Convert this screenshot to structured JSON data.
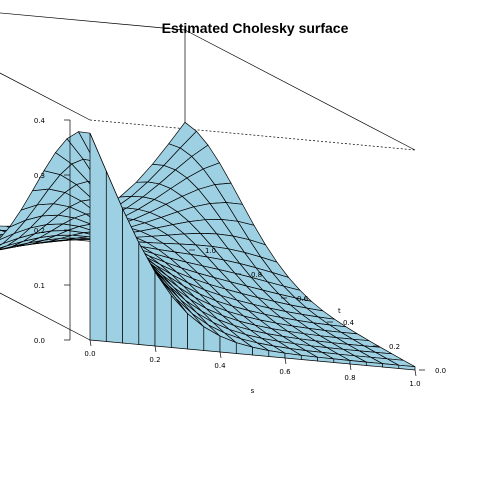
{
  "chart_data": {
    "type": "surface",
    "title": "Estimated Cholesky surface",
    "xlabel": "s",
    "ylabel": "t",
    "zlabel": "",
    "x_ticks": [
      "0.0",
      "0.2",
      "0.4",
      "0.6",
      "0.8",
      "1.0"
    ],
    "y_ticks": [
      "0.0",
      "0.2",
      "0.4",
      "0.6",
      "0.8",
      "1.0"
    ],
    "z_ticks": [
      "0.0",
      "0.1",
      "0.2",
      "0.3",
      "0.4"
    ],
    "xlim": [
      0,
      1
    ],
    "ylim": [
      0,
      1
    ],
    "zlim": [
      0,
      0.4
    ],
    "grid": 20,
    "surface_color": "#9ed0e3",
    "line_color": "#000000",
    "description_values": {
      "z_at_s0_t0": 0.4,
      "z_at_s1_t1": 0.2,
      "valley_min": 0.0
    }
  }
}
